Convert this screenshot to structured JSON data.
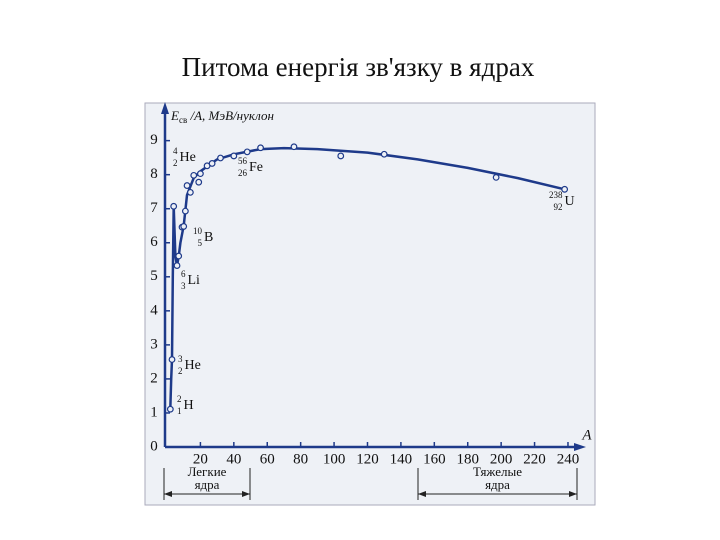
{
  "title": "Питома енергія зв'язку в ядрах",
  "chart_data": {
    "type": "scatter",
    "y_label": {
      "symbol": "E",
      "subscript": "св",
      "rest": " /A, МэВ/нуклон"
    },
    "x_label": "A",
    "x": [
      2,
      3,
      4,
      6,
      7,
      9,
      10,
      11,
      12,
      14,
      16,
      19,
      20,
      24,
      27,
      32,
      40,
      48,
      56,
      76,
      104,
      130,
      197,
      238
    ],
    "values": [
      1.11,
      2.57,
      7.07,
      5.33,
      5.61,
      6.46,
      6.48,
      6.93,
      7.68,
      7.48,
      7.98,
      7.78,
      8.03,
      8.26,
      8.33,
      8.49,
      8.55,
      8.67,
      8.79,
      8.82,
      8.55,
      8.6,
      7.92,
      7.57
    ],
    "curve": {
      "x": [
        2,
        2.5,
        3,
        3.5,
        4,
        5,
        6,
        7,
        8,
        10,
        12,
        16,
        20,
        30,
        40,
        56,
        70,
        90,
        120,
        150,
        180,
        210,
        238
      ],
      "y": [
        1.11,
        2.0,
        2.57,
        5.0,
        7.07,
        5.6,
        5.33,
        5.6,
        6.0,
        6.5,
        7.4,
        7.9,
        8.1,
        8.45,
        8.6,
        8.75,
        8.78,
        8.75,
        8.65,
        8.45,
        8.2,
        7.9,
        7.57
      ]
    },
    "color": "#1e3a8a",
    "xlim": [
      0,
      246
    ],
    "ylim": [
      0,
      9.9
    ],
    "xticks": [
      20,
      40,
      60,
      80,
      100,
      120,
      140,
      160,
      180,
      200,
      220,
      240
    ],
    "yticks": [
      0,
      1,
      2,
      3,
      4,
      5,
      6,
      7,
      8,
      9
    ],
    "grid": false,
    "annotations": [
      {
        "mass": "4",
        "charge": "2",
        "symbol": "He"
      },
      {
        "mass": "56",
        "charge": "26",
        "symbol": "Fe"
      },
      {
        "mass": "238",
        "charge": "92",
        "symbol": "U"
      },
      {
        "mass": "10",
        "charge": "5",
        "symbol": "B"
      },
      {
        "mass": "6",
        "charge": "3",
        "symbol": "Li"
      },
      {
        "mass": "3",
        "charge": "2",
        "symbol": "He"
      },
      {
        "mass": "2",
        "charge": "1",
        "symbol": "H"
      }
    ],
    "regions": [
      {
        "lines": [
          "Легкие",
          "ядра"
        ]
      },
      {
        "lines": [
          "Тяжелые",
          "ядра"
        ]
      }
    ]
  }
}
